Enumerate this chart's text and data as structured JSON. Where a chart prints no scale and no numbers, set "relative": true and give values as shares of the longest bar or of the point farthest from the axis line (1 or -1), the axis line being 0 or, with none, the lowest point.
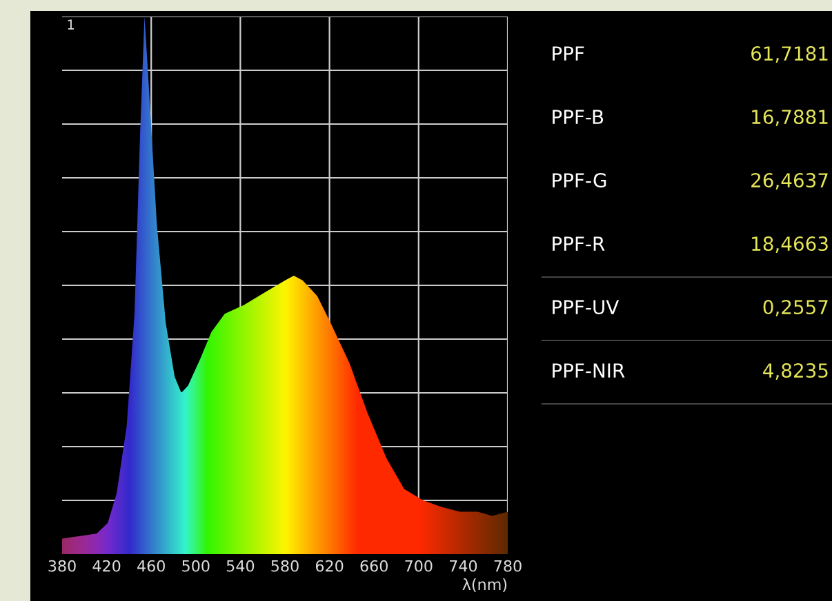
{
  "chart_data": [
    {
      "type": "area",
      "relative": true,
      "xlabel": "λ(nm)",
      "xlim": [
        380,
        780
      ],
      "xticks": [
        380,
        420,
        460,
        500,
        540,
        580,
        620,
        660,
        700,
        740,
        780
      ],
      "grid": true,
      "annotations": [
        "1"
      ],
      "x": [
        380,
        411,
        421,
        429,
        438,
        445,
        450,
        454,
        458,
        465,
        473,
        481,
        487,
        493,
        504,
        514,
        526,
        543,
        563,
        580,
        588,
        596,
        609,
        621,
        638,
        654,
        671,
        687,
        704,
        720,
        737,
        753,
        766,
        780
      ],
      "series": [
        {
          "color": "#ffcc00",
          "values": [
            0.029,
            0.038,
            0.058,
            0.113,
            0.238,
            0.447,
            0.78,
            1.0,
            0.864,
            0.614,
            0.43,
            0.33,
            0.3,
            0.313,
            0.363,
            0.413,
            0.447,
            0.463,
            0.488,
            0.509,
            0.518,
            0.509,
            0.48,
            0.43,
            0.355,
            0.263,
            0.179,
            0.121,
            0.1,
            0.088,
            0.079,
            0.079,
            0.071,
            0.079
          ]
        }
      ]
    },
    {
      "type": "other",
      "categories": [
        "PPF",
        "PPF-B",
        "PPF-G",
        "PPF-R",
        "PPF-UV",
        "PPF-NIR"
      ],
      "value_labels": [
        "61,7181",
        "16,7881",
        "26,4637",
        "18,4663",
        "0,2557",
        "4,8235"
      ],
      "color": "#e6e65a"
    }
  ]
}
